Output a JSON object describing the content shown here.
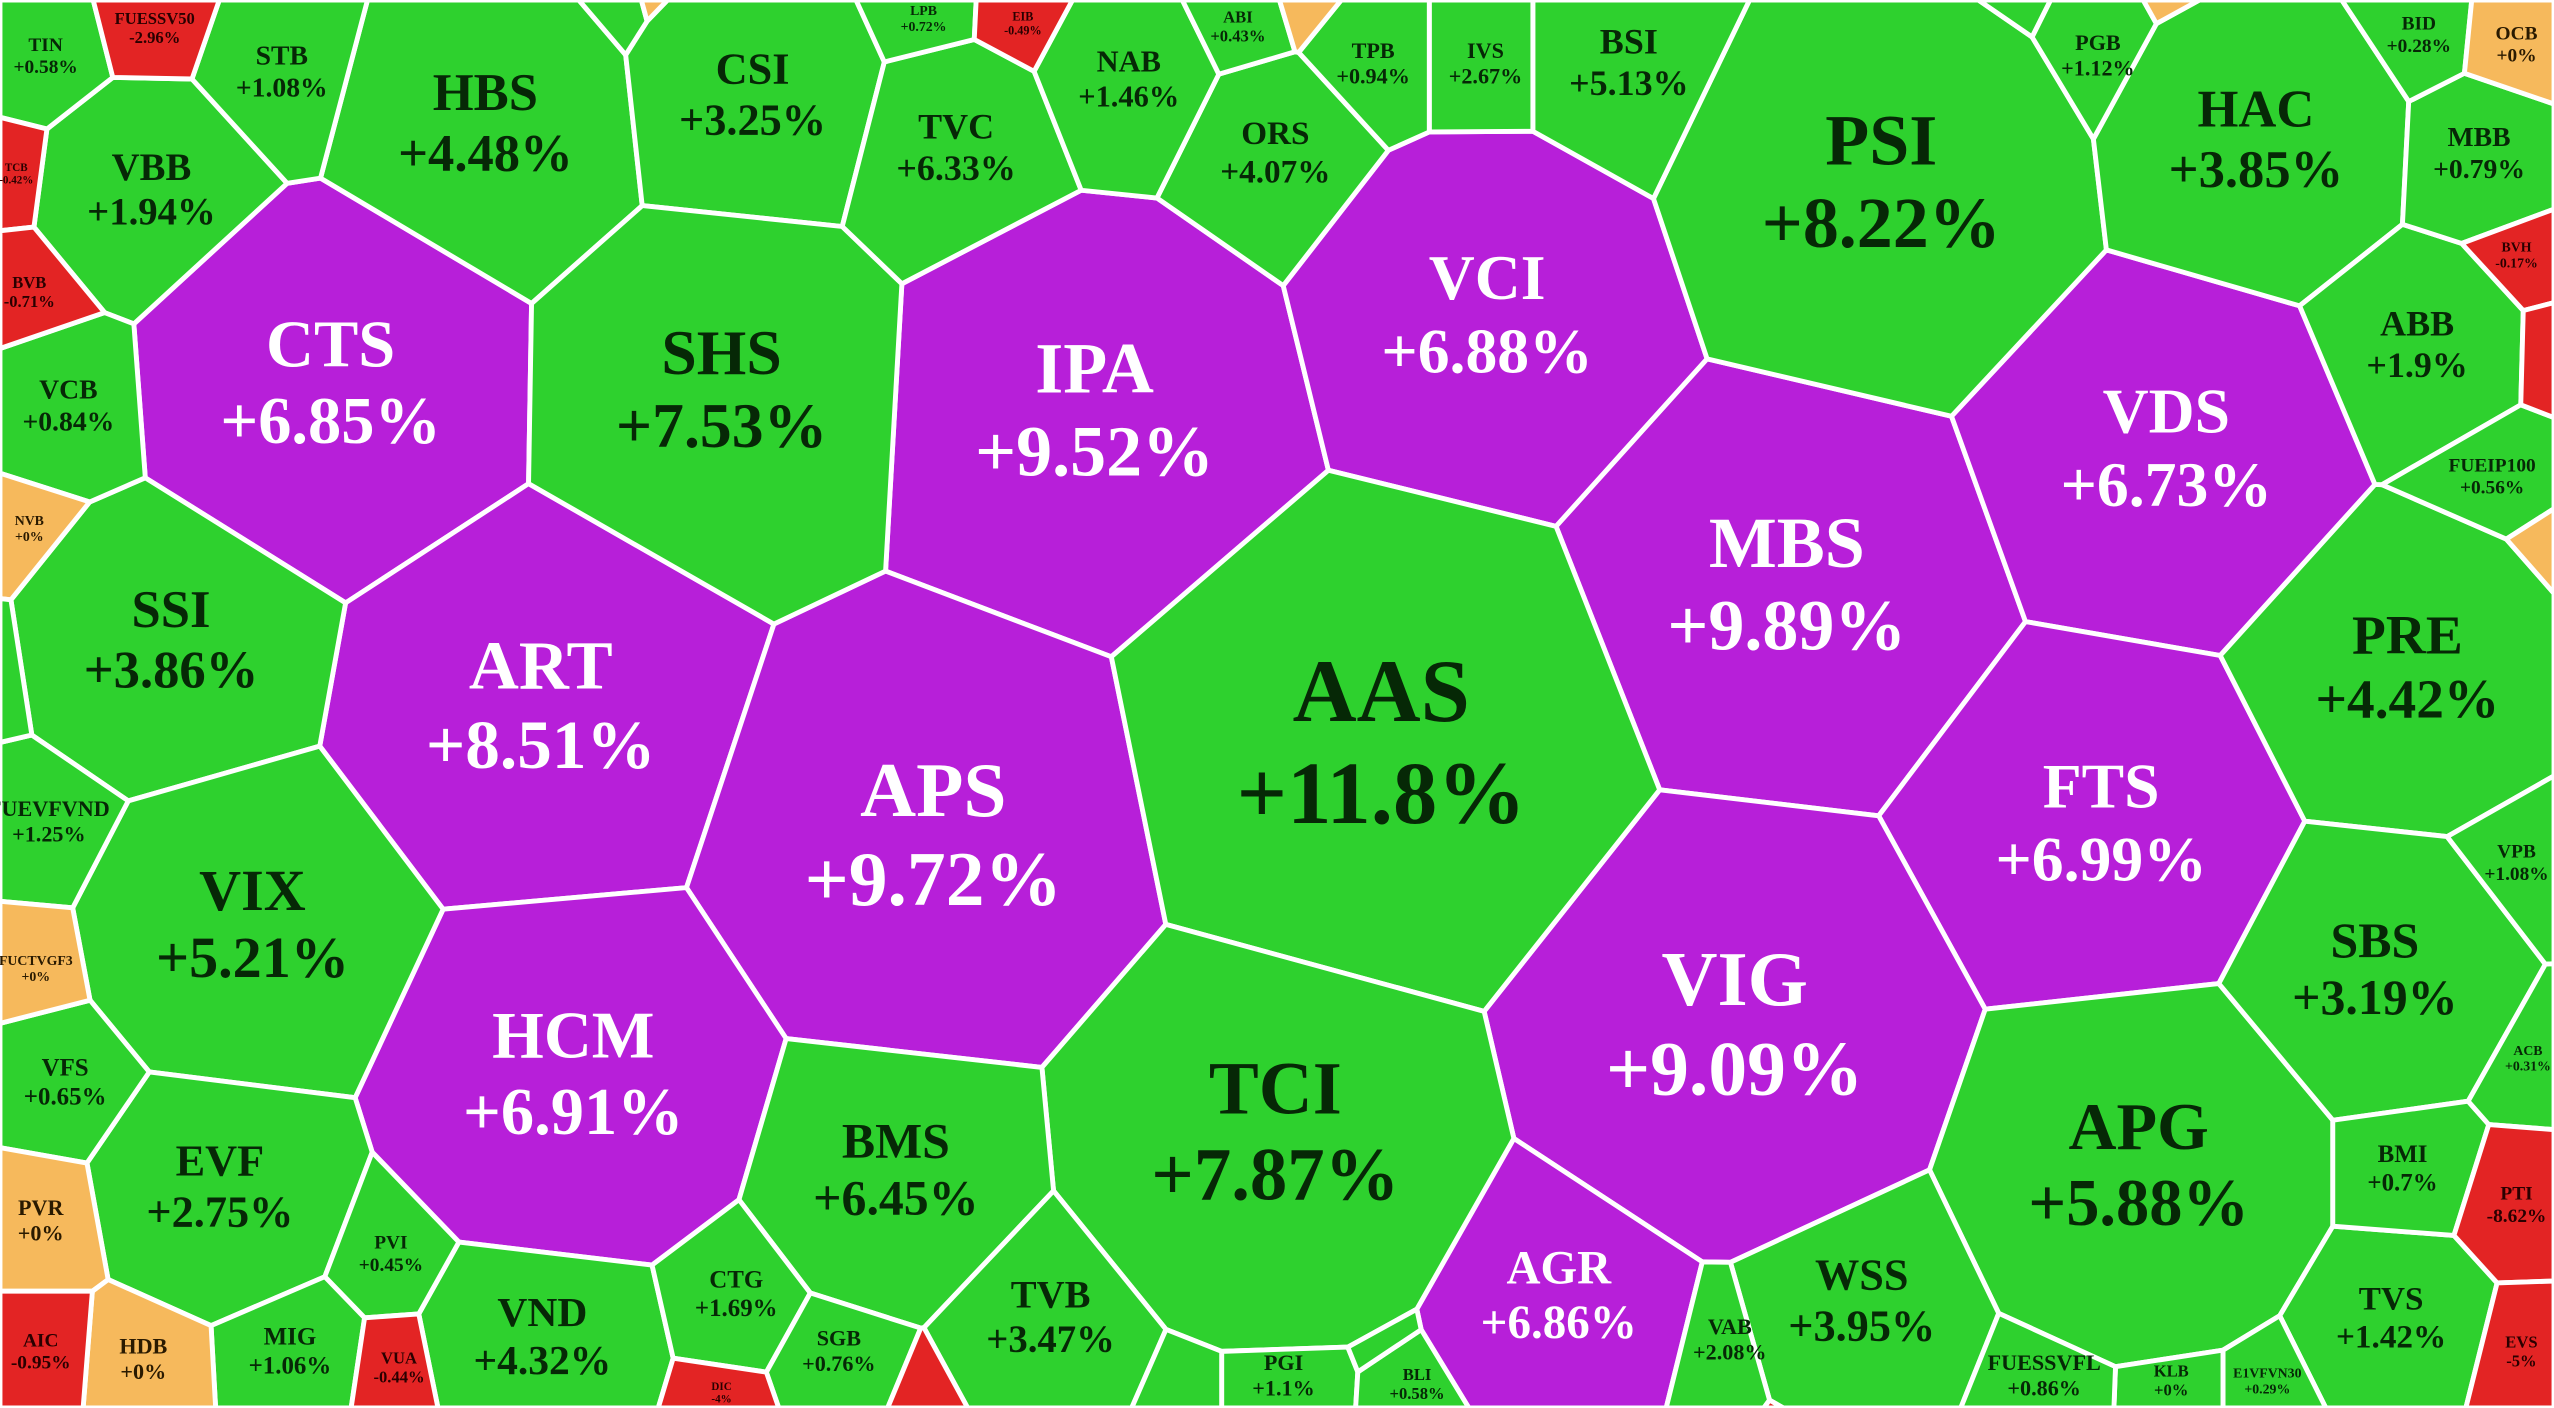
{
  "groups": [
    {
      "color": "#b71fd9",
      "text_color": "#ffffff",
      "cells": [
        {
          "ticker": "CTS",
          "change": "+6.85%"
        },
        {
          "ticker": "IPA",
          "change": "+9.52%"
        },
        {
          "ticker": "VCI",
          "change": "+6.88%"
        },
        {
          "ticker": "MBS",
          "change": "+9.89%"
        },
        {
          "ticker": "VDS",
          "change": "+6.73%"
        },
        {
          "ticker": "ART",
          "change": "+8.51%"
        },
        {
          "ticker": "APS",
          "change": "+9.72%"
        },
        {
          "ticker": "HCM",
          "change": "+6.91%"
        },
        {
          "ticker": "FTS",
          "change": "+6.99%"
        },
        {
          "ticker": "VIG",
          "change": "+9.09%"
        },
        {
          "ticker": "AGR",
          "change": "+6.86%"
        }
      ]
    },
    {
      "color": "#2ed12e",
      "text_color": "#062806",
      "cells": [
        {
          "ticker": "HBS",
          "change": "+4.48%"
        },
        {
          "ticker": "CSI",
          "change": "+3.25%"
        },
        {
          "ticker": "SHS",
          "change": "+7.53%"
        },
        {
          "ticker": "PSI",
          "change": "+8.22%"
        },
        {
          "ticker": "HAC",
          "change": "+3.85%"
        },
        {
          "ticker": "AAS",
          "change": "+11.8%"
        },
        {
          "ticker": "TCI",
          "change": "+7.87%"
        },
        {
          "ticker": "APG",
          "change": "+5.88%"
        },
        {
          "ticker": "SSI",
          "change": "+3.86%"
        },
        {
          "ticker": "VIX",
          "change": "+5.21%"
        },
        {
          "ticker": "EVF",
          "change": "+2.75%"
        },
        {
          "ticker": "BMS",
          "change": "+6.45%"
        },
        {
          "ticker": "TVB",
          "change": "+3.47%"
        },
        {
          "ticker": "VND",
          "change": "+4.32%"
        },
        {
          "ticker": "WSS",
          "change": "+3.95%"
        },
        {
          "ticker": "PRE",
          "change": "+4.42%"
        },
        {
          "ticker": "SBS",
          "change": "+3.19%"
        },
        {
          "ticker": "TVS",
          "change": "+1.42%"
        },
        {
          "ticker": "ABB",
          "change": "+1.9%"
        },
        {
          "ticker": "TVC",
          "change": "+6.33%"
        },
        {
          "ticker": "ORS",
          "change": "+4.07%"
        },
        {
          "ticker": "BSI",
          "change": "+5.13%"
        },
        {
          "ticker": "IVS",
          "change": "+2.67%"
        },
        {
          "ticker": "NAB",
          "change": "+1.46%"
        },
        {
          "ticker": "TPB",
          "change": "+0.94%"
        },
        {
          "ticker": "MBB",
          "change": "+0.79%"
        },
        {
          "ticker": "VBB",
          "change": "+1.94%"
        },
        {
          "ticker": "STB",
          "change": "+1.08%"
        },
        {
          "ticker": "VCB",
          "change": "+0.84%"
        },
        {
          "ticker": "BMI",
          "change": "+0.7%"
        },
        {
          "ticker": "VFS",
          "change": "+0.65%"
        },
        {
          "ticker": "PVI",
          "change": "+0.45%"
        },
        {
          "ticker": "CTG",
          "change": "+1.69%"
        },
        {
          "ticker": "SGB",
          "change": "+0.76%"
        },
        {
          "ticker": "MIG",
          "change": "+1.06%"
        },
        {
          "ticker": "VAB",
          "change": "+2.08%"
        },
        {
          "ticker": "FUEVFVND",
          "change": "+1.25%"
        },
        {
          "ticker": "TIN",
          "change": "+0.58%"
        },
        {
          "ticker": "BID",
          "change": "+0.28%"
        },
        {
          "ticker": "FUEIP100",
          "change": "+0.56%"
        },
        {
          "ticker": "VPB",
          "change": "+1.08%"
        },
        {
          "ticker": "ACB",
          "change": "+0.31%"
        },
        {
          "ticker": "PGB",
          "change": "+1.12%"
        },
        {
          "ticker": "LPB",
          "change": "+0.72%"
        },
        {
          "ticker": "ABI",
          "change": "+0.43%"
        },
        {
          "ticker": "PGI",
          "change": "+1.1%"
        },
        {
          "ticker": "BLI",
          "change": "+0.58%"
        },
        {
          "ticker": "KLB",
          "change": "+0%"
        },
        {
          "ticker": "E1VFVN30",
          "change": "+0.29%"
        },
        {
          "ticker": "FUESSVFL",
          "change": "+0.86%"
        }
      ]
    },
    {
      "color": "#f6b95c",
      "text_color": "#2a1a00",
      "cells": [
        {
          "ticker": "OCB",
          "change": "+0%"
        },
        {
          "ticker": "NVB",
          "change": "+0%"
        },
        {
          "ticker": "FUCTVGF3",
          "change": "+0%"
        },
        {
          "ticker": "PVR",
          "change": "+0%"
        },
        {
          "ticker": "HDB",
          "change": "+0%"
        }
      ]
    },
    {
      "color": "#e32424",
      "text_color": "#2a0000",
      "cells": [
        {
          "ticker": "FUESSV50",
          "change": "-2.96%"
        },
        {
          "ticker": "TCB",
          "change": "-0.42%"
        },
        {
          "ticker": "BVB",
          "change": "-0.71%"
        },
        {
          "ticker": "EIB",
          "change": "-0.49%"
        },
        {
          "ticker": "BVH",
          "change": "-0.17%"
        },
        {
          "ticker": "PTI",
          "change": "-8.62%"
        },
        {
          "ticker": "EVS",
          "change": "-5%"
        },
        {
          "ticker": "AIC",
          "change": "-0.95%"
        },
        {
          "ticker": "VUA",
          "change": "-0.44%"
        },
        {
          "ticker": "DIC",
          "change": "-4%"
        }
      ]
    }
  ]
}
